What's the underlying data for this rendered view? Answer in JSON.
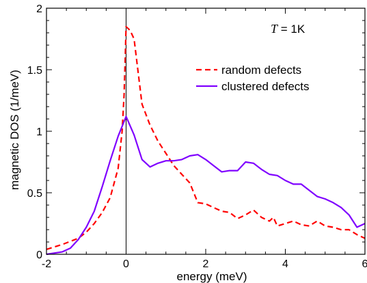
{
  "chart_data": {
    "type": "line",
    "xlabel": "energy (meV)",
    "ylabel": "magnetic DOS (1/meV)",
    "xlim": [
      -2,
      6
    ],
    "ylim": [
      0,
      2
    ],
    "xticks": [
      -2,
      0,
      2,
      4,
      6
    ],
    "yticks": [
      0,
      0.5,
      1,
      1.5,
      2
    ],
    "xtick_labels": [
      "-2",
      "0",
      "2",
      "4",
      "6"
    ],
    "ytick_labels": [
      "0",
      "0.5",
      "1",
      "1.5",
      "2"
    ],
    "grid": false,
    "legend_position": "upper-right",
    "annotation": {
      "variable": "T",
      "rest": " = 1K"
    },
    "vertical_line_at_x": 0,
    "series": [
      {
        "name": "random defects",
        "color": "#ff0000",
        "style": "dashed",
        "x": [
          -2.0,
          -1.6,
          -1.2,
          -1.0,
          -0.8,
          -0.6,
          -0.4,
          -0.2,
          -0.1,
          -0.05,
          0.0,
          0.1,
          0.2,
          0.4,
          0.6,
          0.8,
          1.0,
          1.2,
          1.4,
          1.6,
          1.8,
          2.0,
          2.2,
          2.4,
          2.6,
          2.8,
          3.0,
          3.2,
          3.4,
          3.6,
          3.7,
          3.8,
          4.0,
          4.2,
          4.4,
          4.6,
          4.8,
          5.0,
          5.2,
          5.4,
          5.6,
          5.8,
          6.0
        ],
        "y": [
          0.04,
          0.08,
          0.13,
          0.18,
          0.25,
          0.34,
          0.46,
          0.7,
          1.0,
          1.3,
          1.85,
          1.82,
          1.75,
          1.22,
          1.05,
          0.92,
          0.82,
          0.72,
          0.65,
          0.58,
          0.42,
          0.41,
          0.38,
          0.35,
          0.34,
          0.29,
          0.32,
          0.36,
          0.3,
          0.27,
          0.3,
          0.23,
          0.25,
          0.27,
          0.24,
          0.23,
          0.27,
          0.23,
          0.22,
          0.2,
          0.2,
          0.16,
          0.13
        ]
      },
      {
        "name": "clustered defects",
        "color": "#7f00ff",
        "style": "solid",
        "x": [
          -2.0,
          -1.6,
          -1.4,
          -1.2,
          -1.0,
          -0.8,
          -0.6,
          -0.4,
          -0.2,
          0.0,
          0.2,
          0.4,
          0.6,
          0.8,
          1.0,
          1.2,
          1.4,
          1.6,
          1.8,
          2.0,
          2.2,
          2.4,
          2.6,
          2.8,
          3.0,
          3.2,
          3.4,
          3.6,
          3.8,
          4.0,
          4.2,
          4.4,
          4.6,
          4.8,
          5.0,
          5.2,
          5.4,
          5.6,
          5.8,
          6.0
        ],
        "y": [
          0.0,
          0.02,
          0.05,
          0.12,
          0.22,
          0.35,
          0.55,
          0.76,
          0.96,
          1.12,
          0.97,
          0.77,
          0.71,
          0.74,
          0.76,
          0.76,
          0.77,
          0.8,
          0.81,
          0.77,
          0.72,
          0.67,
          0.68,
          0.68,
          0.75,
          0.74,
          0.69,
          0.65,
          0.64,
          0.6,
          0.57,
          0.57,
          0.52,
          0.47,
          0.45,
          0.42,
          0.38,
          0.32,
          0.22,
          0.25
        ]
      }
    ]
  }
}
